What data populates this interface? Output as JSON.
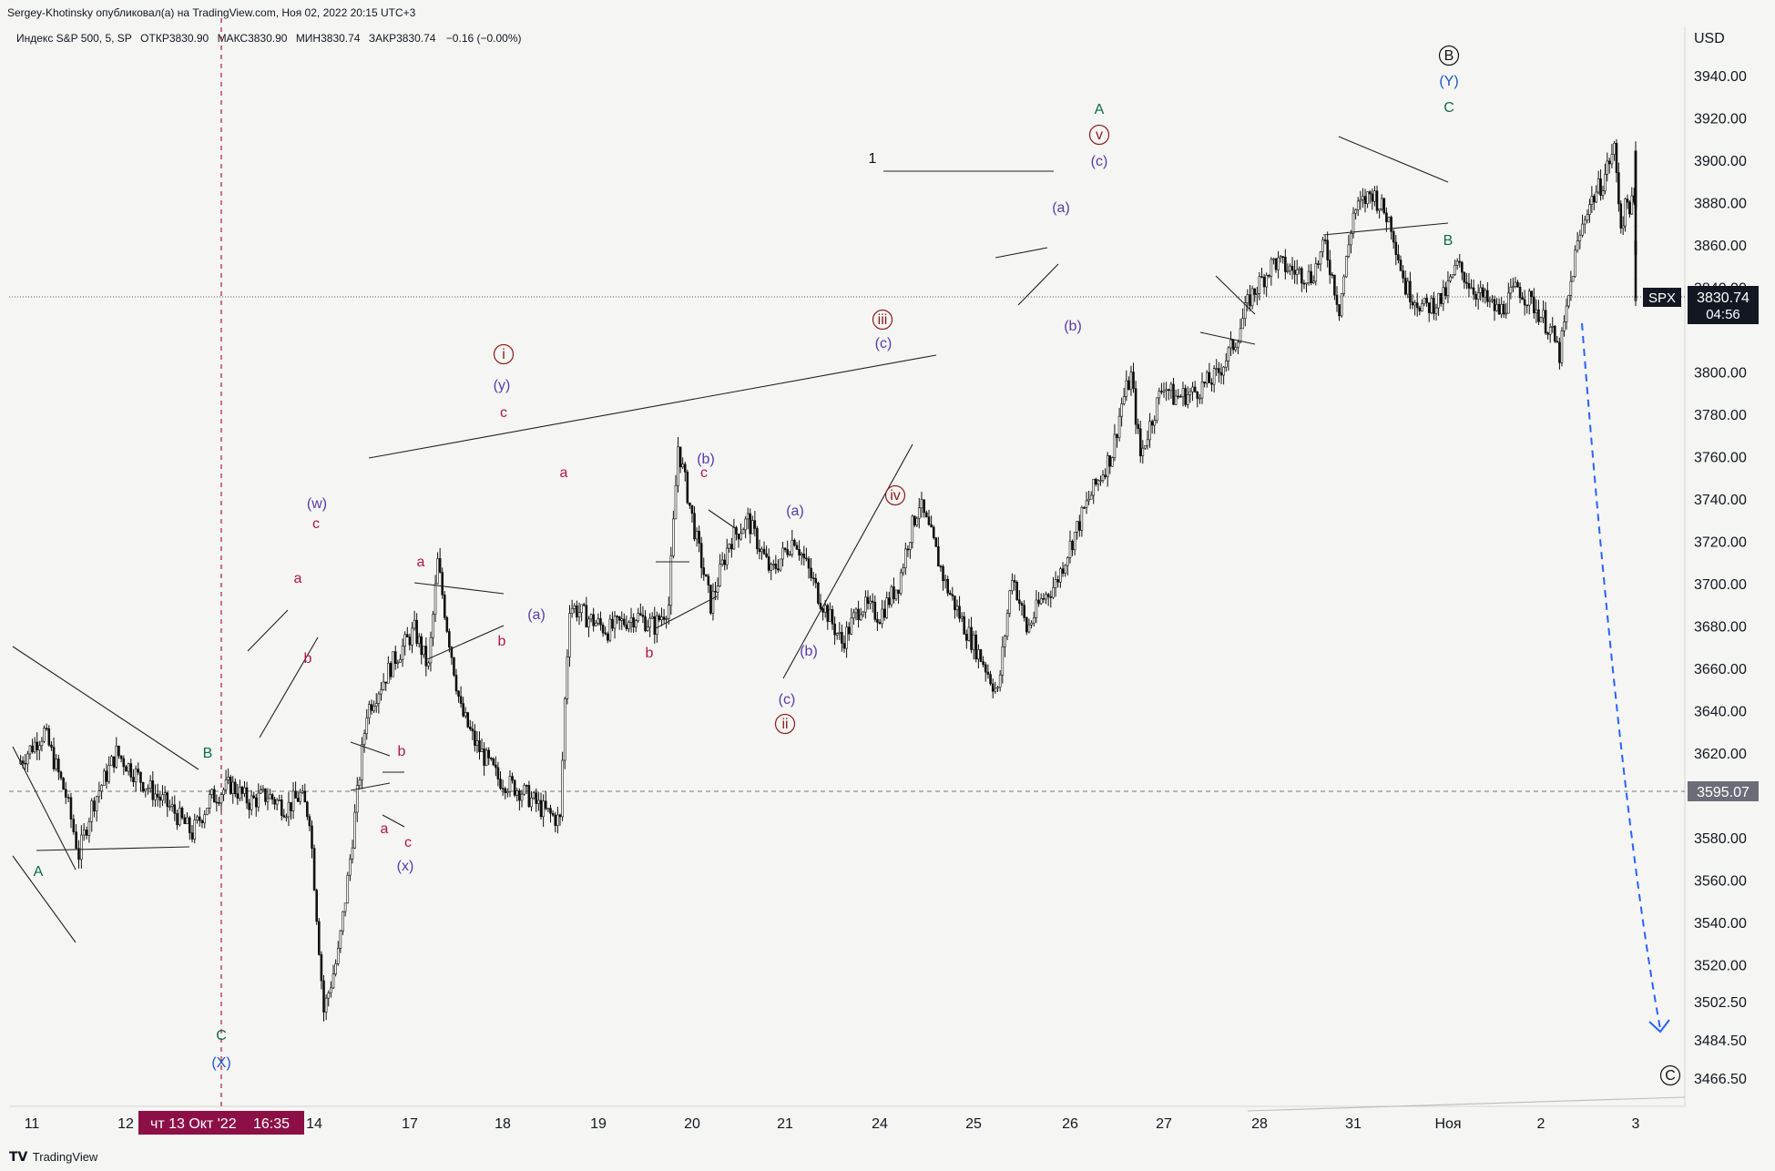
{
  "publisher": "Sergey-Khotinsky опубликовал(а) на TradingView.com, Ноя 02, 2022 20:15 UTC+3",
  "legend": {
    "symbol": "Индекс S&P 500, 5, SP",
    "open": "ОТКР3830.90",
    "high": "МАКС3830.90",
    "low": "МИН3830.74",
    "close": "ЗАКР3830.74",
    "change": "−0.16 (−0.00%)"
  },
  "currency": "USD",
  "footer_brand": "TradingView",
  "colors": {
    "background": "#f5f5f3",
    "axis_text": "#131722",
    "wave_green": "#0f6b4f",
    "wave_purple": "#5b3aa8",
    "wave_pink": "#b0174a",
    "wave_darkred": "#8e1b1b",
    "wave_blue": "#1e56c8",
    "projection": "#2962ff",
    "crosshair": "#b0174a",
    "price_tag": "#131722"
  },
  "chart_data": {
    "type": "candlestick",
    "symbol": "SPX",
    "timeframe": "5",
    "ylim": [
      3455,
      3960
    ],
    "y_ticks": [
      "3940.00",
      "3920.00",
      "3900.00",
      "3880.00",
      "3860.00",
      "3840.00",
      "3800.00",
      "3780.00",
      "3760.00",
      "3740.00",
      "3720.00",
      "3700.00",
      "3680.00",
      "3660.00",
      "3640.00",
      "3620.00",
      "3580.00",
      "3560.00",
      "3540.00",
      "3520.00",
      "3502.50",
      "3484.50",
      "3466.50"
    ],
    "x_ticks": [
      "11",
      "12",
      "14",
      "17",
      "18",
      "19",
      "20",
      "21",
      "24",
      "25",
      "26",
      "27",
      "28",
      "31",
      "Ноя",
      "2",
      "3"
    ],
    "crosshair_date_label": "чт 13 Окт '22",
    "crosshair_time_label": "16:35",
    "last_price": "3830.74",
    "last_price_countdown": "04:56",
    "last_price_symbol": "SPX",
    "crosshair_price": "3595.07",
    "price_path_points": [
      [
        0,
        3615
      ],
      [
        0.3,
        3630
      ],
      [
        0.55,
        3600
      ],
      [
        0.7,
        3572
      ],
      [
        0.85,
        3595
      ],
      [
        1.1,
        3620
      ],
      [
        1.35,
        3605
      ],
      [
        1.6,
        3592
      ],
      [
        1.75,
        3582
      ],
      [
        1.9,
        3598
      ],
      [
        2.1,
        3605
      ],
      [
        2.3,
        3597
      ],
      [
        2.5,
        3600
      ],
      [
        2.7,
        3594
      ],
      [
        2.85,
        3600
      ],
      [
        2.95,
        3590
      ],
      [
        3.1,
        3498
      ],
      [
        3.25,
        3525
      ],
      [
        3.35,
        3560
      ],
      [
        3.55,
        3640
      ],
      [
        3.85,
        3665
      ],
      [
        4.05,
        3678
      ],
      [
        4.2,
        3660
      ],
      [
        4.3,
        3710
      ],
      [
        4.4,
        3680
      ],
      [
        4.55,
        3640
      ],
      [
        4.7,
        3625
      ],
      [
        4.95,
        3608
      ],
      [
        5.2,
        3602
      ],
      [
        5.45,
        3592
      ],
      [
        5.6,
        3588
      ],
      [
        5.65,
        3645
      ],
      [
        5.7,
        3690
      ],
      [
        5.85,
        3685
      ],
      [
        6.1,
        3678
      ],
      [
        6.4,
        3685
      ],
      [
        6.6,
        3680
      ],
      [
        6.75,
        3690
      ],
      [
        6.85,
        3765
      ],
      [
        7.05,
        3720
      ],
      [
        7.2,
        3690
      ],
      [
        7.4,
        3720
      ],
      [
        7.6,
        3730
      ],
      [
        7.85,
        3705
      ],
      [
        8.1,
        3722
      ],
      [
        8.35,
        3695
      ],
      [
        8.6,
        3672
      ],
      [
        8.8,
        3690
      ],
      [
        9.0,
        3685
      ],
      [
        9.2,
        3700
      ],
      [
        9.3,
        3720
      ],
      [
        9.42,
        3738
      ],
      [
        9.55,
        3722
      ],
      [
        9.7,
        3700
      ],
      [
        9.9,
        3680
      ],
      [
        10.1,
        3663
      ],
      [
        10.25,
        3648
      ],
      [
        10.4,
        3705
      ],
      [
        10.55,
        3678
      ],
      [
        10.7,
        3692
      ],
      [
        10.85,
        3700
      ],
      [
        11.0,
        3718
      ],
      [
        11.2,
        3740
      ],
      [
        11.45,
        3762
      ],
      [
        11.55,
        3785
      ],
      [
        11.65,
        3798
      ],
      [
        11.75,
        3760
      ],
      [
        11.85,
        3775
      ],
      [
        12.0,
        3795
      ],
      [
        12.1,
        3788
      ],
      [
        12.3,
        3790
      ],
      [
        12.55,
        3798
      ],
      [
        12.75,
        3815
      ],
      [
        12.9,
        3835
      ],
      [
        13.15,
        3852
      ],
      [
        13.35,
        3848
      ],
      [
        13.55,
        3845
      ],
      [
        13.7,
        3860
      ],
      [
        13.85,
        3830
      ],
      [
        14.0,
        3875
      ],
      [
        14.2,
        3885
      ],
      [
        14.4,
        3870
      ],
      [
        14.55,
        3840
      ],
      [
        14.75,
        3830
      ],
      [
        14.95,
        3835
      ],
      [
        15.1,
        3850
      ],
      [
        15.3,
        3838
      ],
      [
        15.55,
        3828
      ],
      [
        15.75,
        3840
      ],
      [
        15.95,
        3830
      ],
      [
        16.15,
        3820
      ],
      [
        16.3,
        3808
      ],
      [
        16.45,
        3835
      ],
      [
        16.55,
        3855
      ],
      [
        16.75,
        3878
      ],
      [
        17.0,
        3890
      ],
      [
        17.2,
        3900
      ],
      [
        17.35,
        3905
      ],
      [
        17.55,
        3870
      ],
      [
        17.75,
        3880
      ],
      [
        17.95,
        3878
      ],
      [
        18.15,
        3875
      ],
      [
        18.3,
        3880
      ],
      [
        18.38,
        3908
      ],
      [
        18.45,
        3870
      ],
      [
        18.55,
        3855
      ],
      [
        18.75,
        3862
      ],
      [
        19.0,
        3862
      ],
      [
        19.2,
        3858
      ],
      [
        19.35,
        3860
      ],
      [
        19.45,
        3842
      ],
      [
        19.7,
        3838
      ],
      [
        19.9,
        3838
      ],
      [
        20.05,
        3832
      ],
      [
        20.2,
        3831
      ]
    ],
    "trendlines_and_drawings": "Elliott wave trendlines, triangles and a dashed projection line from about 3820 to 3488",
    "wave_labels": [
      "A",
      "B",
      "C",
      "(X)",
      "(w)",
      "a",
      "b",
      "c",
      "a",
      "b",
      "c",
      "(x)",
      "a",
      "b",
      "i",
      "(y)",
      "c",
      "a",
      "(a)",
      "b",
      "(b)",
      "c",
      "(a)",
      "(b)",
      "(c)",
      "ii",
      "iii",
      "(c)",
      "iv",
      "(a)",
      "(b)",
      "A",
      "v",
      "(c)",
      "B",
      "(Y)",
      "C",
      "B",
      "C",
      "1"
    ]
  }
}
